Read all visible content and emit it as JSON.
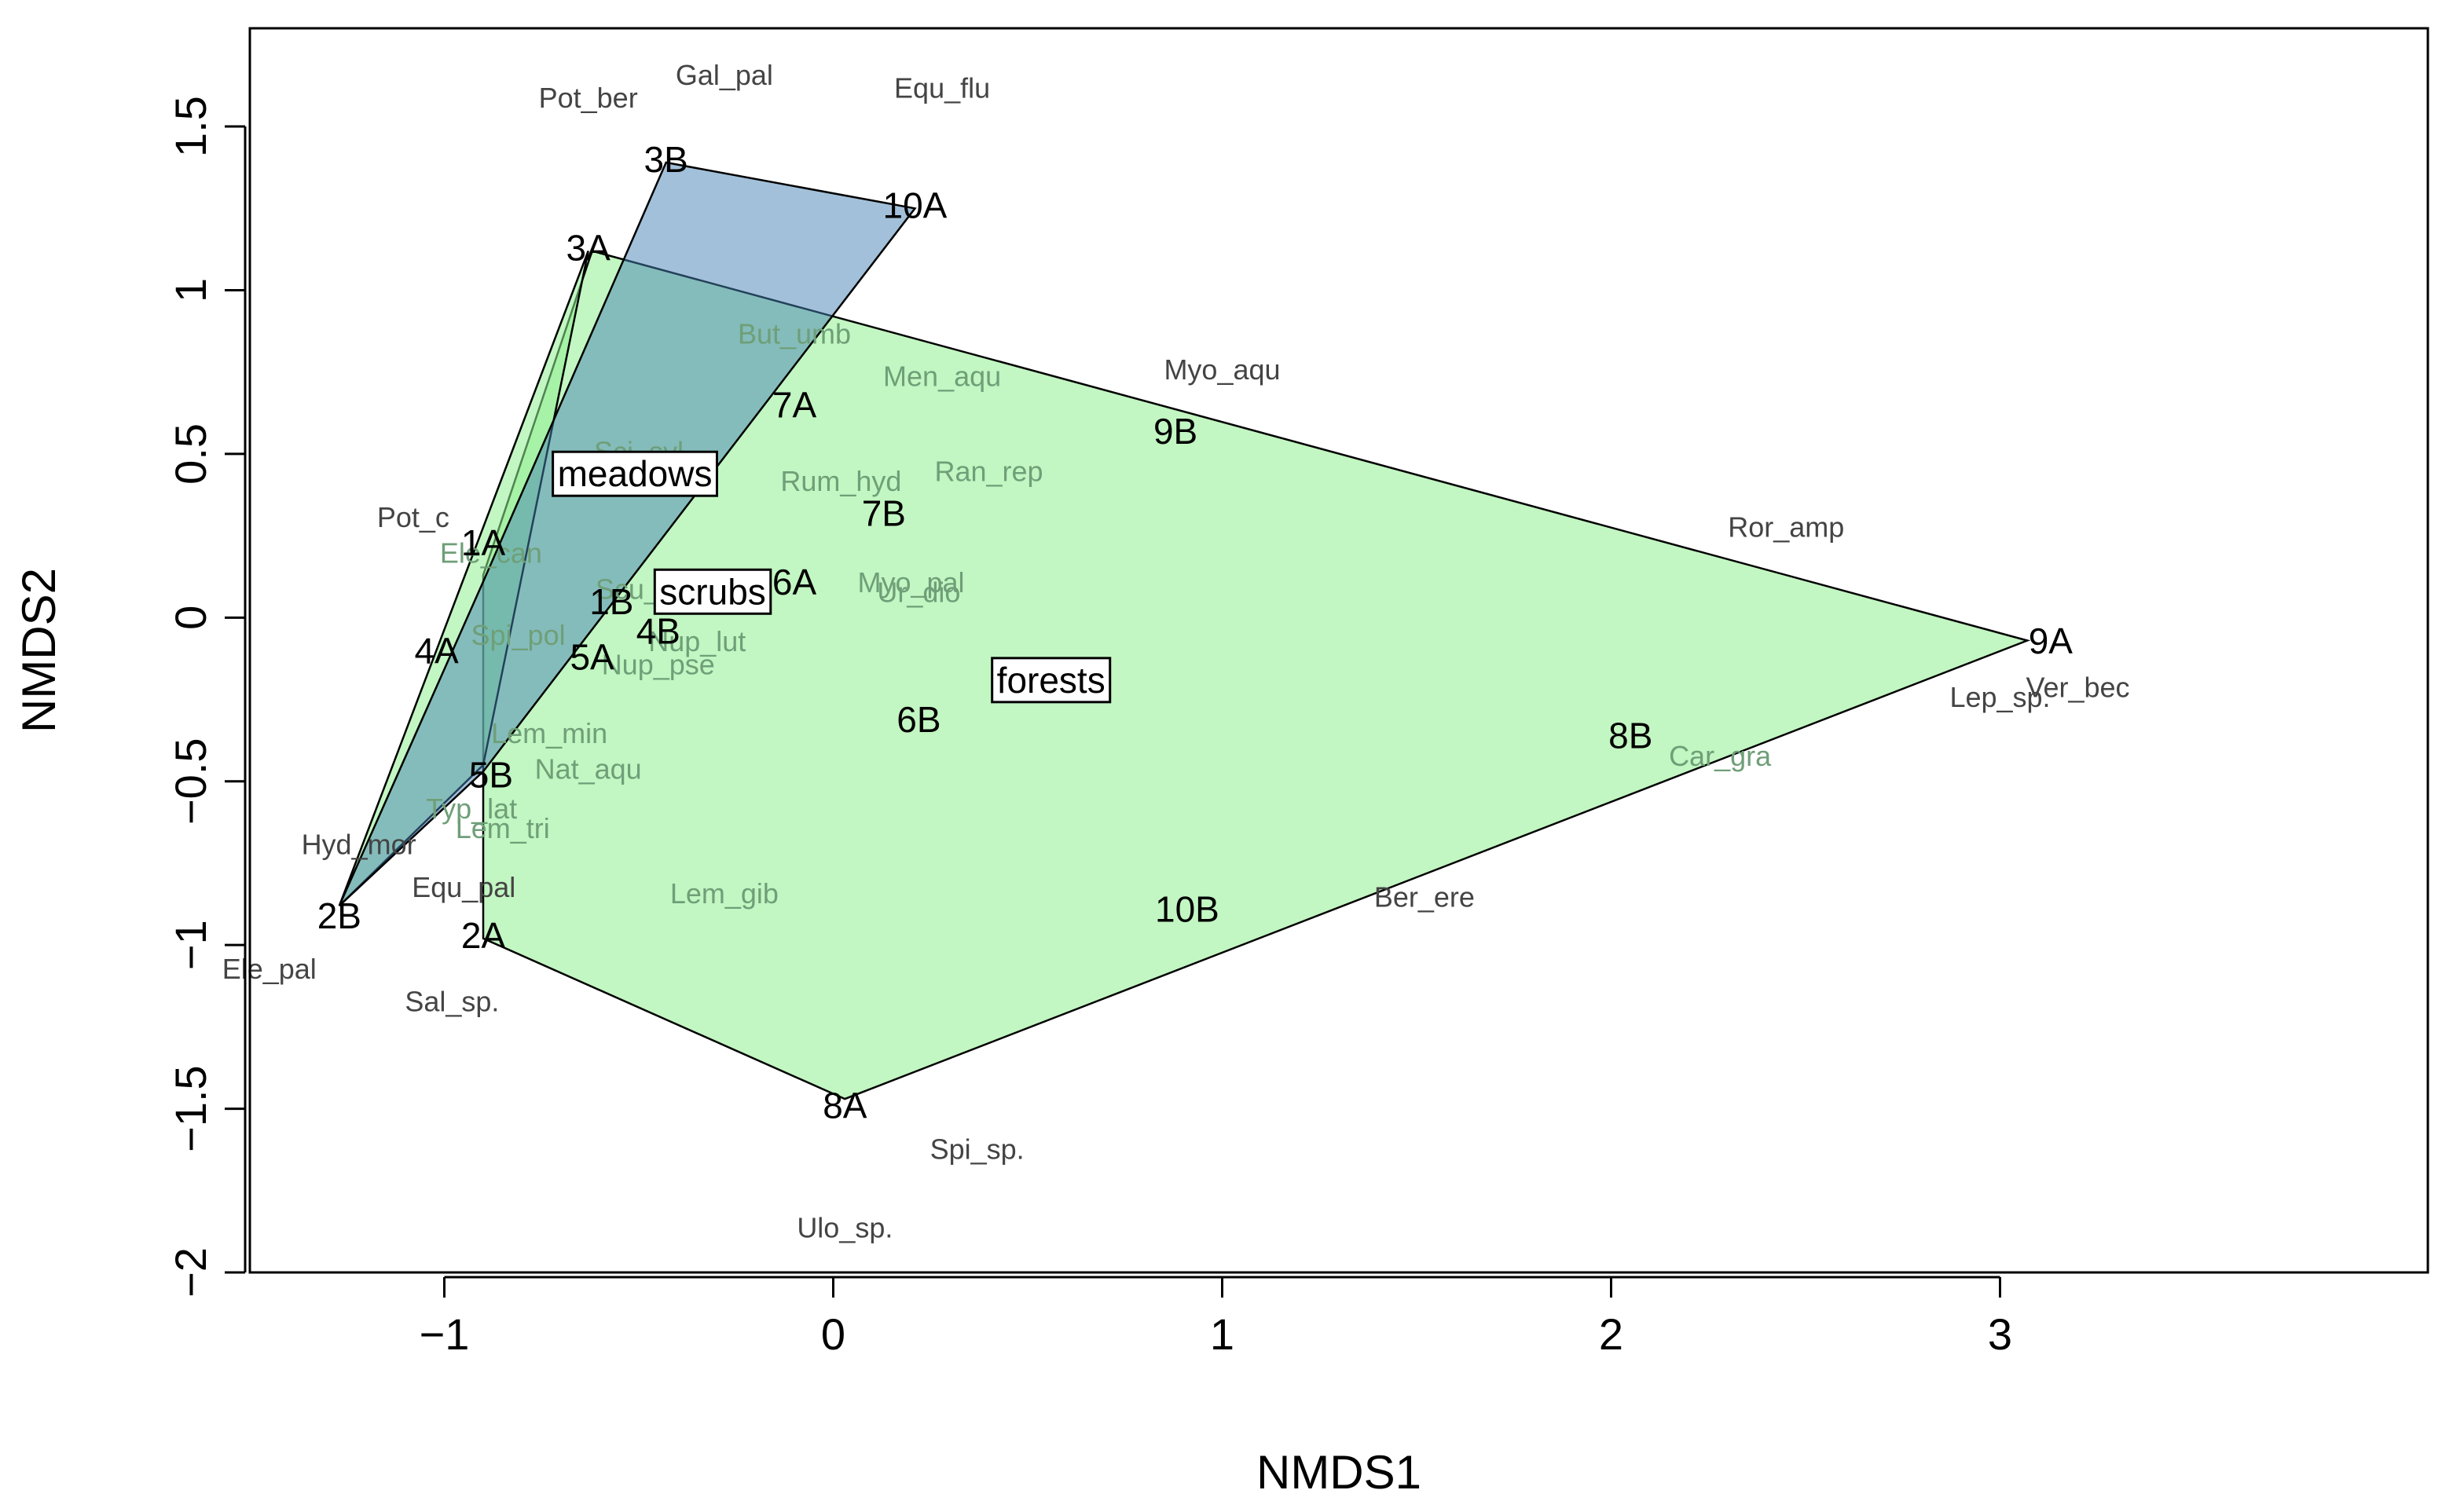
{
  "chart_data": {
    "type": "scatter",
    "title": "",
    "xlabel": "NMDS1",
    "ylabel": "NMDS2",
    "xlim": [
      -1.5,
      4.1
    ],
    "ylim": [
      -2.0,
      1.8
    ],
    "x_ticks": [
      {
        "value": -1,
        "label": "−1"
      },
      {
        "value": 0,
        "label": "0"
      },
      {
        "value": 1,
        "label": "1"
      },
      {
        "value": 2,
        "label": "2"
      },
      {
        "value": 3,
        "label": "3"
      }
    ],
    "y_ticks": [
      {
        "value": 1.5,
        "label": "1.5"
      },
      {
        "value": 1,
        "label": "1"
      },
      {
        "value": 0.5,
        "label": "0.5"
      },
      {
        "value": 0,
        "label": "0"
      },
      {
        "value": -0.5,
        "label": "−0.5"
      },
      {
        "value": -1,
        "label": "−1"
      },
      {
        "value": -1.5,
        "label": "−1.5"
      },
      {
        "value": -2,
        "label": "−2"
      }
    ],
    "hulls": [
      {
        "group": "forests",
        "fill": "#90EE90",
        "opacity": 0.55,
        "vertices": [
          [
            -0.62,
            1.12
          ],
          [
            3.07,
            -0.07
          ],
          [
            0.03,
            -1.47
          ],
          [
            -0.9,
            -0.98
          ],
          [
            -0.9,
            0.13
          ]
        ]
      },
      {
        "group": "meadows",
        "fill": "#90EE90",
        "opacity": 0.55,
        "vertices": [
          [
            -0.63,
            1.12
          ],
          [
            -0.9,
            -0.45
          ],
          [
            -1.27,
            -0.88
          ]
        ]
      },
      {
        "group": "scrubs",
        "fill": "#4682B4",
        "opacity": 0.5,
        "vertices": [
          [
            -0.43,
            1.39
          ],
          [
            0.21,
            1.25
          ],
          [
            -0.9,
            -0.47
          ],
          [
            -1.27,
            -0.88
          ],
          [
            -0.9,
            0.11
          ]
        ]
      }
    ],
    "group_labels": [
      {
        "text": "meadows",
        "x": -0.51,
        "y": 0.43
      },
      {
        "text": "scrubs",
        "x": -0.31,
        "y": 0.07
      },
      {
        "text": "forests",
        "x": 0.56,
        "y": -0.2
      }
    ],
    "sites": [
      {
        "label": "3B",
        "x": -0.43,
        "y": 1.39
      },
      {
        "label": "10A",
        "x": 0.21,
        "y": 1.25
      },
      {
        "label": "3A",
        "x": -0.63,
        "y": 1.12
      },
      {
        "label": "7A",
        "x": -0.1,
        "y": 0.64
      },
      {
        "label": "9B",
        "x": 0.88,
        "y": 0.56
      },
      {
        "label": "7B",
        "x": 0.13,
        "y": 0.31
      },
      {
        "label": "1A",
        "x": -0.9,
        "y": 0.22
      },
      {
        "label": "6A",
        "x": -0.1,
        "y": 0.1
      },
      {
        "label": "1B",
        "x": -0.57,
        "y": 0.04
      },
      {
        "label": "4B",
        "x": -0.45,
        "y": -0.05
      },
      {
        "label": "4A",
        "x": -1.02,
        "y": -0.11
      },
      {
        "label": "5A",
        "x": -0.62,
        "y": -0.13
      },
      {
        "label": "9A",
        "x": 3.13,
        "y": -0.08
      },
      {
        "label": "6B",
        "x": 0.22,
        "y": -0.32
      },
      {
        "label": "8B",
        "x": 2.05,
        "y": -0.37
      },
      {
        "label": "5B",
        "x": -0.88,
        "y": -0.49
      },
      {
        "label": "2B",
        "x": -1.27,
        "y": -0.92
      },
      {
        "label": "10B",
        "x": 0.91,
        "y": -0.9
      },
      {
        "label": "2A",
        "x": -0.9,
        "y": -0.98
      },
      {
        "label": "8A",
        "x": 0.03,
        "y": -1.5
      }
    ],
    "species_dark_color": "#444444",
    "species_faded_color": "#6f9f78",
    "species": [
      {
        "label": "Gal_pal",
        "x": -0.28,
        "y": 1.65,
        "style": "dark"
      },
      {
        "label": "Pot_ber",
        "x": -0.63,
        "y": 1.58,
        "style": "dark"
      },
      {
        "label": "Equ_flu",
        "x": 0.28,
        "y": 1.61,
        "style": "dark"
      },
      {
        "label": "But_umb",
        "x": -0.1,
        "y": 0.86,
        "style": "faded"
      },
      {
        "label": "Men_aqu",
        "x": 0.28,
        "y": 0.73,
        "style": "faded"
      },
      {
        "label": "Myo_aqu",
        "x": 1.0,
        "y": 0.75,
        "style": "dark"
      },
      {
        "label": "Sci_syl",
        "x": -0.5,
        "y": 0.5,
        "style": "faded"
      },
      {
        "label": "Rum_hyd",
        "x": 0.02,
        "y": 0.41,
        "style": "faded"
      },
      {
        "label": "Ran_rep",
        "x": 0.4,
        "y": 0.44,
        "style": "faded"
      },
      {
        "label": "Ror_amp",
        "x": 2.45,
        "y": 0.27,
        "style": "dark"
      },
      {
        "label": "Pot_c",
        "x": -1.08,
        "y": 0.3,
        "style": "dark"
      },
      {
        "label": "Ele_can",
        "x": -0.88,
        "y": 0.19,
        "style": "faded"
      },
      {
        "label": "Myo_pal",
        "x": 0.2,
        "y": 0.1,
        "style": "faded"
      },
      {
        "label": "Ur_dio",
        "x": 0.22,
        "y": 0.07,
        "style": "faded"
      },
      {
        "label": "Scu_gal",
        "x": -0.48,
        "y": 0.08,
        "style": "faded"
      },
      {
        "label": "Spi_pol",
        "x": -0.81,
        "y": -0.06,
        "style": "faded"
      },
      {
        "label": "Nup_lut",
        "x": -0.35,
        "y": -0.08,
        "style": "faded"
      },
      {
        "label": "Nup_pse",
        "x": -0.45,
        "y": -0.15,
        "style": "faded"
      },
      {
        "label": "Ver_bec",
        "x": 3.2,
        "y": -0.22,
        "style": "dark"
      },
      {
        "label": "Lep_sp.",
        "x": 3.0,
        "y": -0.25,
        "style": "dark"
      },
      {
        "label": "Lem_min",
        "x": -0.73,
        "y": -0.36,
        "style": "faded"
      },
      {
        "label": "Car_gra",
        "x": 2.28,
        "y": -0.43,
        "style": "faded"
      },
      {
        "label": "Nat_aqu",
        "x": -0.63,
        "y": -0.47,
        "style": "faded"
      },
      {
        "label": "Typ_lat",
        "x": -0.93,
        "y": -0.59,
        "style": "faded"
      },
      {
        "label": "Lem_tri",
        "x": -0.85,
        "y": -0.65,
        "style": "faded"
      },
      {
        "label": "Hyd_mor",
        "x": -1.22,
        "y": -0.7,
        "style": "dark"
      },
      {
        "label": "Equ_pal",
        "x": -0.95,
        "y": -0.83,
        "style": "dark"
      },
      {
        "label": "Lem_gib",
        "x": -0.28,
        "y": -0.85,
        "style": "faded"
      },
      {
        "label": "Ber_ere",
        "x": 1.52,
        "y": -0.86,
        "style": "dark"
      },
      {
        "label": "Ele_pal",
        "x": -1.45,
        "y": -1.08,
        "style": "dark"
      },
      {
        "label": "Sal_sp.",
        "x": -0.98,
        "y": -1.18,
        "style": "dark"
      },
      {
        "label": "Spi_sp.",
        "x": 0.37,
        "y": -1.63,
        "style": "dark"
      },
      {
        "label": "Ulo_sp.",
        "x": 0.03,
        "y": -1.87,
        "style": "dark"
      }
    ]
  }
}
